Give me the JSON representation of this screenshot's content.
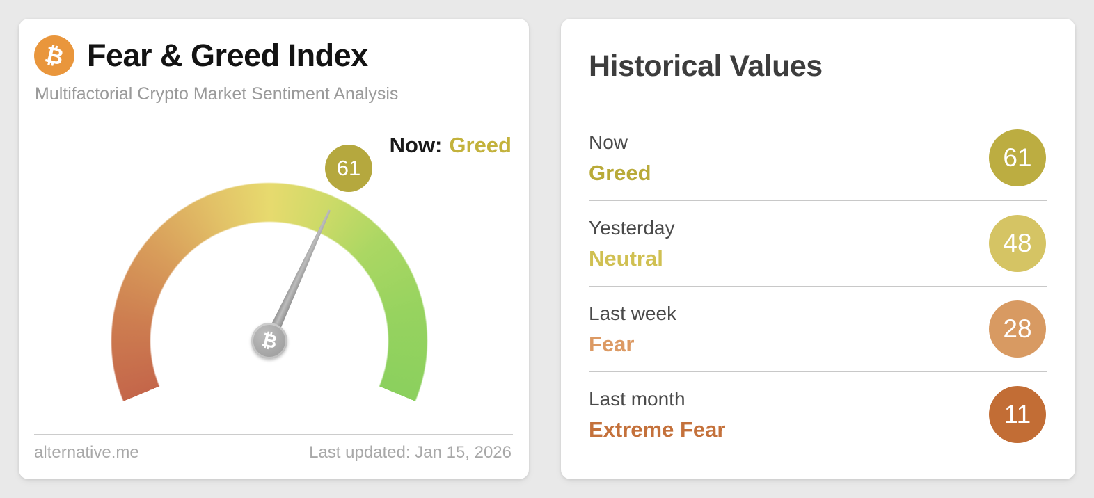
{
  "page": {
    "background_color": "#e9e9e9"
  },
  "gauge_card": {
    "bitcoin_symbol": "₿",
    "title": "Fear & Greed Index",
    "subtitle": "Multifactorial Crypto Market Sentiment Analysis",
    "now_label": "Now:",
    "now_sentiment": "Greed",
    "now_sentiment_color": "#c3b23c",
    "value_badge": "61",
    "value_badge_color": "#b5a83e",
    "footer_source": "alternative.me",
    "footer_updated": "Last updated: Jan 15, 2026"
  },
  "historical_card": {
    "title": "Historical Values",
    "rows": [
      {
        "label": "Now",
        "sentiment": "Greed",
        "value": "61",
        "badge_color": "#bcad41",
        "text_color": "#b9aa39"
      },
      {
        "label": "Yesterday",
        "sentiment": "Neutral",
        "value": "48",
        "badge_color": "#d5c464",
        "text_color": "#d0c052"
      },
      {
        "label": "Last week",
        "sentiment": "Fear",
        "value": "28",
        "badge_color": "#d89a62",
        "text_color": "#dc9a64"
      },
      {
        "label": "Last month",
        "sentiment": "Extreme Fear",
        "value": "11",
        "badge_color": "#c26d35",
        "text_color": "#c4713b"
      }
    ]
  },
  "chart_data": {
    "type": "gauge",
    "title": "Fear & Greed Index",
    "subtitle": "Multifactorial Crypto Market Sentiment Analysis",
    "min": 0,
    "max": 100,
    "value": 61,
    "classification": "Greed",
    "gauge_span_degrees": 225,
    "color_scale": [
      {
        "value": 0,
        "color": "#c4664a"
      },
      {
        "value": 25,
        "color": "#d89c5a"
      },
      {
        "value": 50,
        "color": "#e7da6e"
      },
      {
        "value": 75,
        "color": "#abd763"
      },
      {
        "value": 100,
        "color": "#8bd05e"
      }
    ],
    "needle_color": "#a0a0a0",
    "history": [
      {
        "period": "Now",
        "classification": "Greed",
        "value": 61
      },
      {
        "period": "Yesterday",
        "classification": "Neutral",
        "value": 48
      },
      {
        "period": "Last week",
        "classification": "Fear",
        "value": 28
      },
      {
        "period": "Last month",
        "classification": "Extreme Fear",
        "value": 11
      }
    ],
    "source": "alternative.me",
    "last_updated": "Jan 15, 2026"
  }
}
